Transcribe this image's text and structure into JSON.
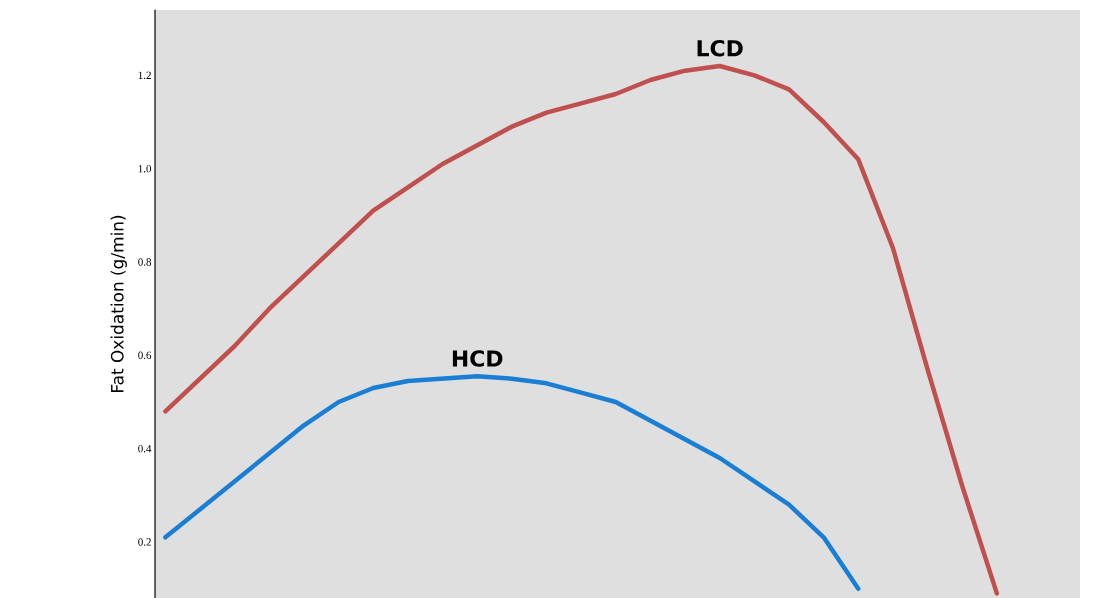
{
  "chart_data": {
    "type": "line",
    "ylabel": "Fat Oxidation (g/min)",
    "categories": [
      null,
      null,
      null,
      null,
      null,
      null,
      null,
      null,
      null,
      null,
      null,
      null,
      null,
      null,
      null,
      null,
      null,
      null,
      null,
      null,
      null,
      null,
      null,
      null,
      null
    ],
    "series": [
      {
        "name": "LCD",
        "color": "#c0504d",
        "values": [
          0.48,
          0.55,
          0.62,
          0.7,
          0.77,
          0.84,
          0.91,
          0.96,
          1.01,
          1.05,
          1.09,
          1.12,
          1.14,
          1.16,
          1.19,
          1.21,
          1.22,
          1.2,
          1.17,
          1.1,
          1.02,
          0.83,
          0.57,
          0.32,
          0.09
        ]
      },
      {
        "name": "HCD",
        "color": "#1a7fd4",
        "values": [
          0.21,
          0.27,
          0.33,
          0.39,
          0.45,
          0.5,
          0.53,
          0.545,
          0.55,
          0.555,
          0.55,
          0.54,
          0.52,
          0.5,
          0.46,
          0.42,
          0.38,
          0.33,
          0.28,
          0.21,
          0.1,
          null,
          null,
          null,
          null
        ]
      }
    ],
    "line_style": "solid",
    "ylim": [
      0.08,
      1.34
    ],
    "yticks": [
      0.2,
      0.4,
      0.6,
      0.8,
      {
        "value": 1.0,
        "label": "1.0"
      },
      1.2
    ],
    "grid": false,
    "legend": false
  }
}
